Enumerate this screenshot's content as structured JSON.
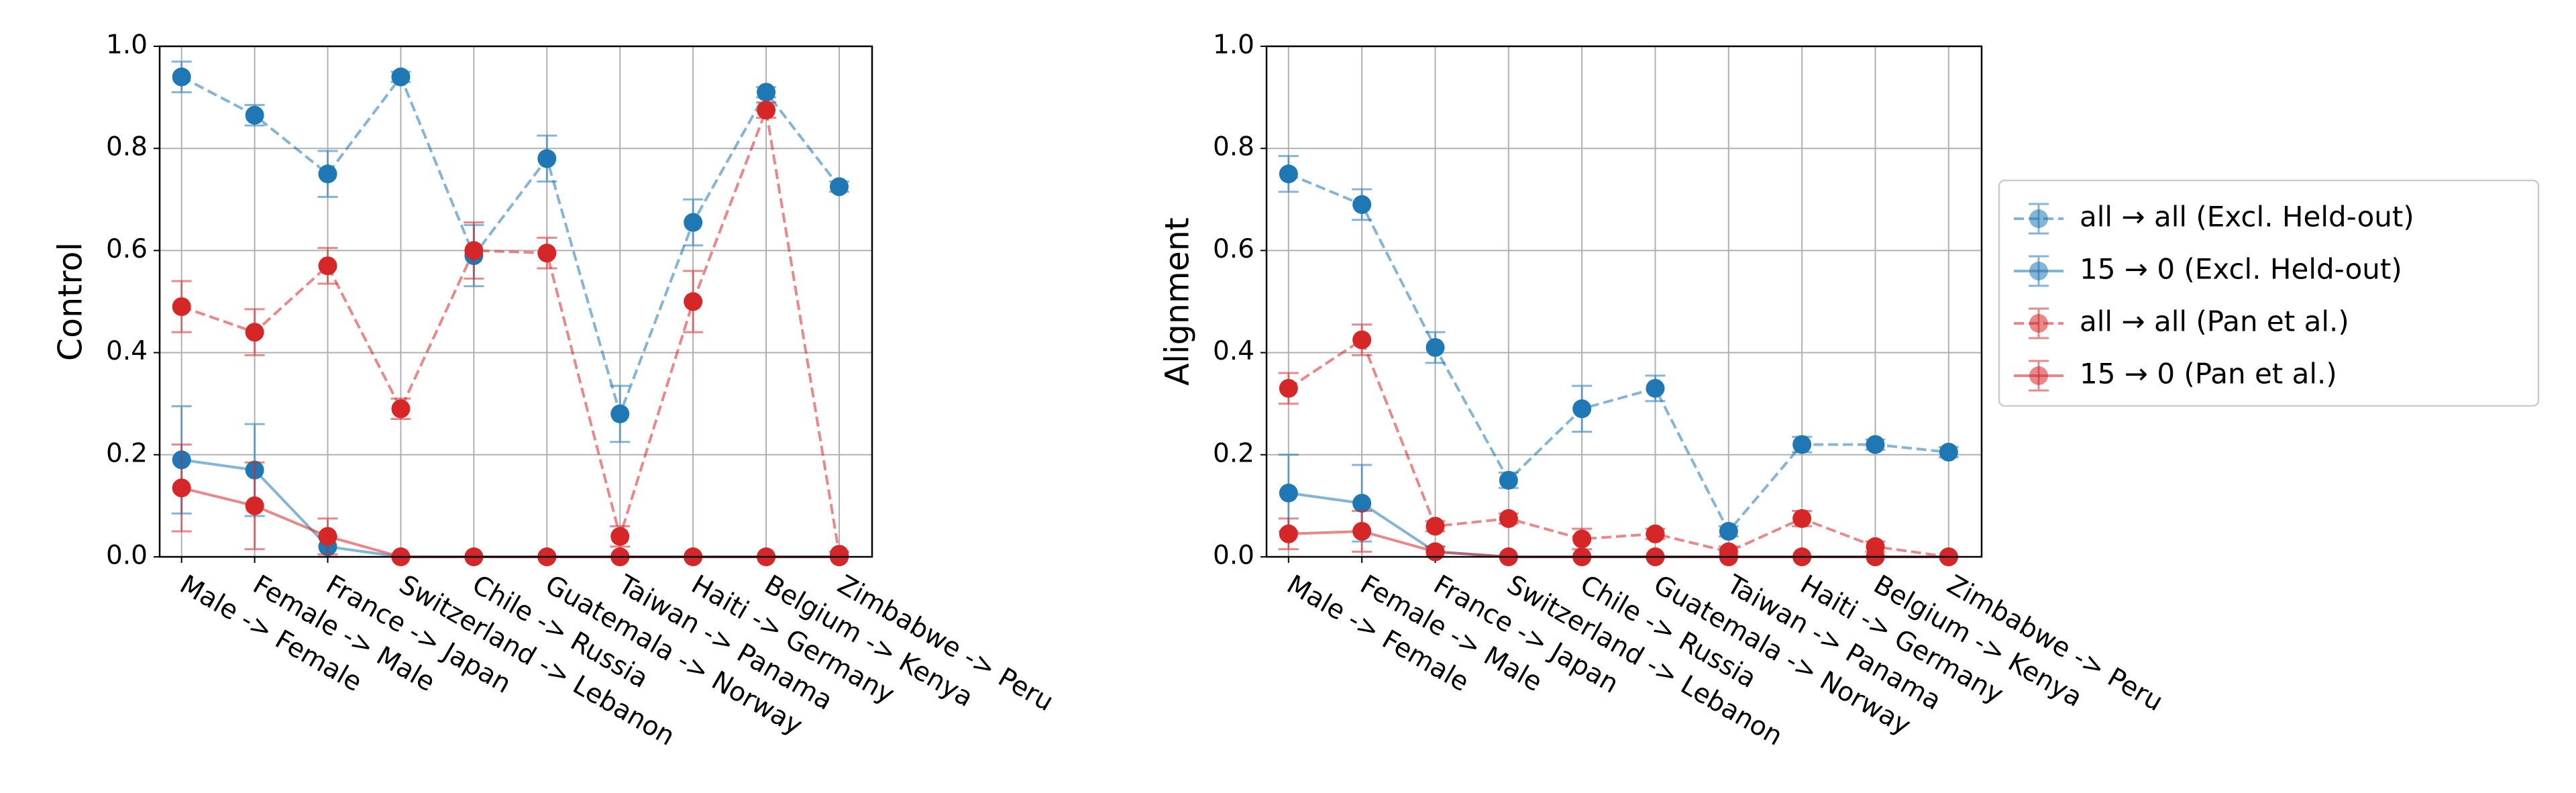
{
  "chart_data": [
    {
      "type": "line",
      "ylabel": "Control",
      "categories": [
        "Male -> Female",
        "Female -> Male",
        "France -> Japan",
        "Switzerland -> Lebanon",
        "Chile -> Russia",
        "Guatemala -> Norway",
        "Taiwan -> Panama",
        "Haiti -> Germany",
        "Belgium -> Kenya",
        "Zimbabwe -> Peru"
      ],
      "ylim": [
        0,
        1
      ],
      "yticks": [
        {
          "value": 0,
          "label": "0.0"
        },
        {
          "value": 0.2,
          "label": "0.2"
        },
        {
          "value": 0.4,
          "label": "0.4"
        },
        {
          "value": 0.6,
          "label": "0.6"
        },
        {
          "value": 0.8,
          "label": "0.8"
        },
        {
          "value": 1,
          "label": "1.0"
        }
      ],
      "grid": true,
      "series": [
        {
          "name": "all → all (Excl. Held-out)",
          "color": "#1f77b4",
          "linestyle": "dashed",
          "values": [
            0.94,
            0.865,
            0.75,
            0.94,
            0.59,
            0.78,
            0.28,
            0.655,
            0.91,
            0.725
          ],
          "errors": [
            0.03,
            0.02,
            0.045,
            0.01,
            0.06,
            0.045,
            0.055,
            0.045,
            0.01,
            0.01
          ]
        },
        {
          "name": "15 → 0 (Excl. Held-out)",
          "color": "#1f77b4",
          "linestyle": "solid",
          "values": [
            0.19,
            0.17,
            0.02,
            0,
            0,
            0,
            0,
            0,
            0,
            0
          ],
          "errors": [
            0.105,
            0.09,
            0.02,
            0,
            0,
            0,
            0,
            0,
            0,
            0
          ]
        },
        {
          "name": "all → all (Pan et al.)",
          "color": "#d62728",
          "linestyle": "dashed",
          "values": [
            0.49,
            0.44,
            0.57,
            0.29,
            0.6,
            0.595,
            0.04,
            0.5,
            0.875,
            0.005
          ],
          "errors": [
            0.05,
            0.045,
            0.035,
            0.02,
            0.055,
            0.03,
            0.02,
            0.06,
            0.015,
            0.005
          ]
        },
        {
          "name": "15 → 0 (Pan et al.)",
          "color": "#d62728",
          "linestyle": "solid",
          "values": [
            0.135,
            0.1,
            0.04,
            0,
            0,
            0,
            0,
            0,
            0,
            0
          ],
          "errors": [
            0.085,
            0.085,
            0.035,
            0,
            0,
            0,
            0,
            0,
            0,
            0
          ]
        }
      ]
    },
    {
      "type": "line",
      "ylabel": "Alignment",
      "categories": [
        "Male -> Female",
        "Female -> Male",
        "France -> Japan",
        "Switzerland -> Lebanon",
        "Chile -> Russia",
        "Guatemala -> Norway",
        "Taiwan -> Panama",
        "Haiti -> Germany",
        "Belgium -> Kenya",
        "Zimbabwe -> Peru"
      ],
      "ylim": [
        0,
        1
      ],
      "yticks": [
        {
          "value": 0,
          "label": "0.0"
        },
        {
          "value": 0.2,
          "label": "0.2"
        },
        {
          "value": 0.4,
          "label": "0.4"
        },
        {
          "value": 0.6,
          "label": "0.6"
        },
        {
          "value": 0.8,
          "label": "0.8"
        },
        {
          "value": 1,
          "label": "1.0"
        }
      ],
      "grid": true,
      "legend": "outside right",
      "series": [
        {
          "name": "all → all (Excl. Held-out)",
          "color": "#1f77b4",
          "linestyle": "dashed",
          "values": [
            0.75,
            0.69,
            0.41,
            0.15,
            0.29,
            0.33,
            0.05,
            0.22,
            0.22,
            0.205
          ],
          "errors": [
            0.035,
            0.03,
            0.03,
            0.015,
            0.045,
            0.025,
            0.01,
            0.015,
            0.01,
            0.01
          ]
        },
        {
          "name": "15 → 0 (Excl. Held-out)",
          "color": "#1f77b4",
          "linestyle": "solid",
          "values": [
            0.125,
            0.105,
            0.01,
            0,
            0,
            0,
            0,
            0,
            0,
            0
          ],
          "errors": [
            0.075,
            0.075,
            0.01,
            0,
            0,
            0,
            0,
            0,
            0,
            0
          ]
        },
        {
          "name": "all → all (Pan et al.)",
          "color": "#d62728",
          "linestyle": "dashed",
          "values": [
            0.33,
            0.425,
            0.06,
            0.075,
            0.035,
            0.045,
            0.01,
            0.075,
            0.02,
            0
          ],
          "errors": [
            0.03,
            0.03,
            0.01,
            0.01,
            0.02,
            0.01,
            0.01,
            0.015,
            0.01,
            0
          ]
        },
        {
          "name": "15 → 0 (Pan et al.)",
          "color": "#d62728",
          "linestyle": "solid",
          "values": [
            0.045,
            0.05,
            0.01,
            0,
            0,
            0,
            0,
            0,
            0,
            0
          ],
          "errors": [
            0.03,
            0.04,
            0.01,
            0,
            0,
            0,
            0,
            0,
            0,
            0
          ]
        }
      ]
    }
  ]
}
